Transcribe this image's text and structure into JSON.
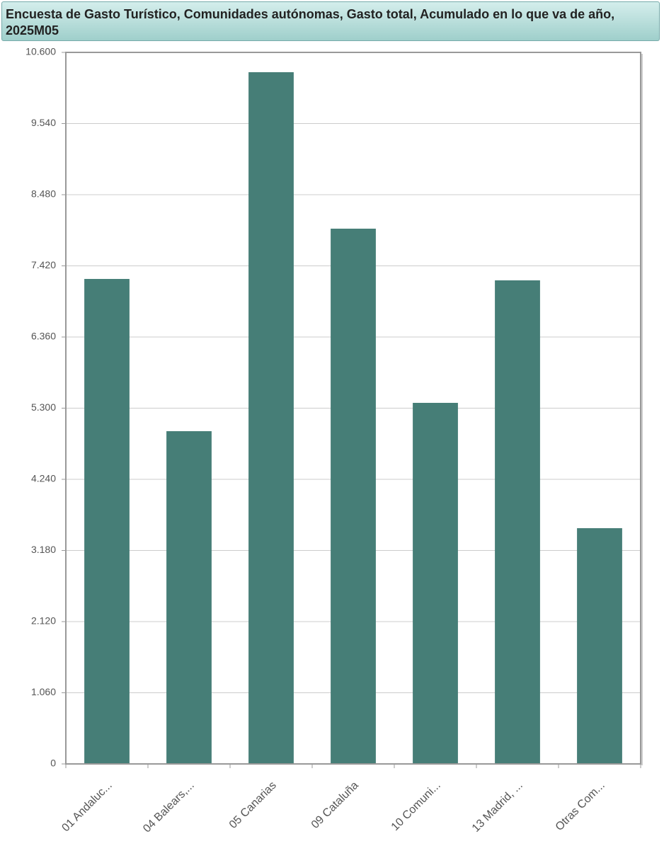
{
  "chart_data": {
    "type": "bar",
    "title": "Encuesta de Gasto Turístico, Comunidades autónomas, Gasto total, Acumulado en lo que va de año, 2025M05",
    "categories": [
      "01 Andaluc...",
      "04 Balears,...",
      "05 Canarias",
      "09 Cataluña",
      "10 Comuni...",
      "13 Madrid, ...",
      "Otras Com..."
    ],
    "values": [
      7225,
      4957,
      10305,
      7974,
      5379,
      7204,
      3512
    ],
    "color": "#467e77",
    "ylim": [
      0,
      10600
    ],
    "yticks": [
      0,
      {
        "value": 1060,
        "label": "1.060"
      },
      {
        "value": 2120,
        "label": "2.120"
      },
      {
        "value": 3180,
        "label": "3.180"
      },
      {
        "value": 4240,
        "label": "4.240"
      },
      {
        "value": 5300,
        "label": "5.300"
      },
      {
        "value": 6360,
        "label": "6.360"
      },
      {
        "value": 7420,
        "label": "7.420"
      },
      {
        "value": 8480,
        "label": "8.480"
      },
      {
        "value": 9540,
        "label": "9.540"
      },
      {
        "value": 10600,
        "label": "10.600"
      }
    ],
    "grid": true
  }
}
